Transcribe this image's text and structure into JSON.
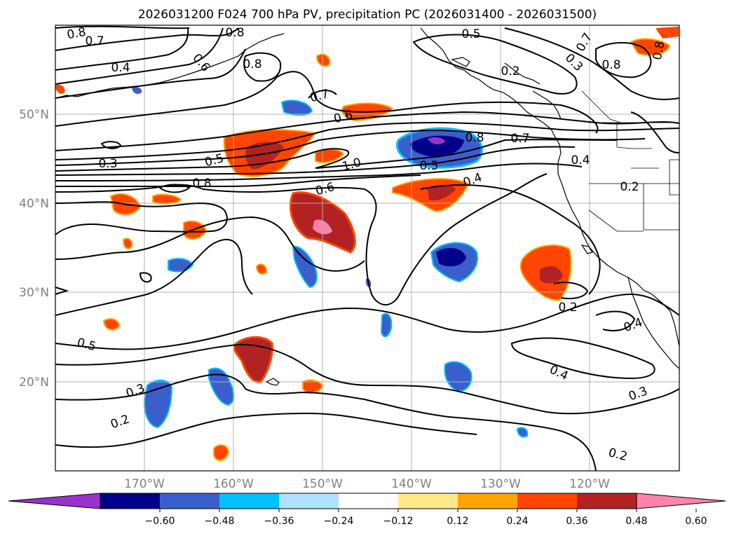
{
  "title": "2026031200 F024 700 hPa PV, precipitation PC (2026031400 - 2026031500)",
  "map": {
    "lat_labels": [
      "50°N",
      "40°N",
      "30°N",
      "20°N"
    ],
    "lon_labels": [
      "170°W",
      "160°W",
      "150°W",
      "140°W",
      "130°W",
      "120°W"
    ],
    "contour_labels": [
      "0.8",
      "0.7",
      "0.8",
      "0.5",
      "0.4",
      "0.6",
      "0.8",
      "0.2",
      "0.3",
      "0.7",
      "0.8",
      "0.7",
      "0.6",
      "0.8",
      "0.7",
      "0.3",
      "0.5",
      "1.0",
      "0.5",
      "0.4",
      "0.8",
      "0.6",
      "0.8",
      "0.4",
      "0.2",
      "0.2",
      "0.4",
      "0.5",
      "0.4",
      "0.3",
      "0.3",
      "0.2",
      "0.2"
    ]
  },
  "colorbar": {
    "ticks": [
      "−0.60",
      "−0.48",
      "−0.36",
      "−0.24",
      "−0.12",
      "0.12",
      "0.24",
      "0.36",
      "0.48",
      "0.60"
    ],
    "colors": [
      "#9932cc",
      "#00008b",
      "#3a5fcd",
      "#00bfff",
      "#b0e2ff",
      "#ffffff",
      "#ffe98a",
      "#ffa500",
      "#ff4500",
      "#b22222",
      "#ff82ab"
    ]
  }
}
